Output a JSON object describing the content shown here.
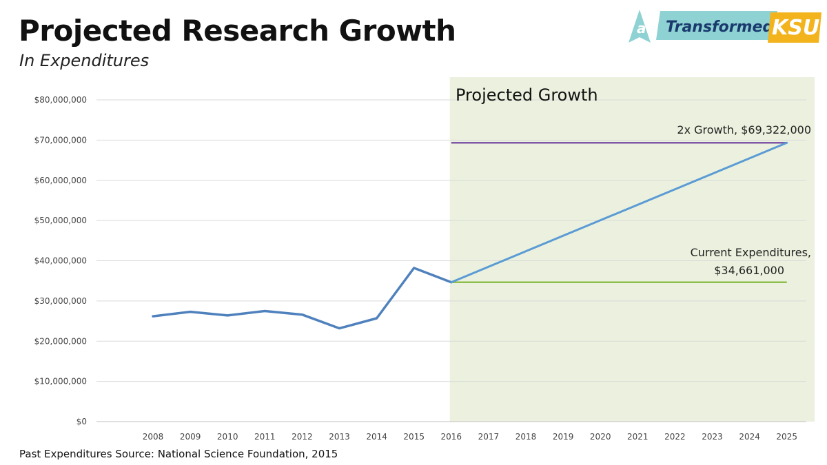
{
  "header": {
    "title": "Projected Research Growth",
    "subtitle": "In Expenditures"
  },
  "footer": {
    "source": "Past Expenditures Source: National Science Foundation, 2015"
  },
  "logo": {
    "word1": "Transformed",
    "word2": "KSU",
    "mark": "a",
    "colors": {
      "teal": "#8ed2d3",
      "gold": "#f2b31c",
      "navy": "#1a3a6e",
      "white": "#ffffff"
    }
  },
  "chart_data": {
    "type": "line",
    "x": [
      "2008",
      "2009",
      "2010",
      "2011",
      "2012",
      "2013",
      "2014",
      "2015",
      "2016",
      "2017",
      "2018",
      "2019",
      "2020",
      "2021",
      "2022",
      "2023",
      "2024",
      "2025"
    ],
    "y_ticks": [
      "$0",
      "$10,000,000",
      "$20,000,000",
      "$30,000,000",
      "$40,000,000",
      "$50,000,000",
      "$60,000,000",
      "$70,000,000",
      "$80,000,000"
    ],
    "ylim": [
      0,
      80000000
    ],
    "grid": true,
    "series": [
      {
        "x": [
          "2008",
          "2009",
          "2010",
          "2011",
          "2012",
          "2013",
          "2014",
          "2015",
          "2016"
        ],
        "values": [
          26200000,
          27300000,
          26400000,
          27500000,
          26600000,
          23200000,
          25700000,
          38200000,
          34661000
        ],
        "color": "#4f81bd"
      },
      {
        "x": [
          "2016",
          "2025"
        ],
        "values": [
          34661000,
          69322000
        ],
        "color": "#5b9bd5"
      },
      {
        "x": [
          "2016",
          "2025"
        ],
        "values": [
          69322000,
          69322000
        ],
        "color": "#7e57a6"
      },
      {
        "x": [
          "2016",
          "2025"
        ],
        "values": [
          34661000,
          34661000
        ],
        "color": "#8fbe4a"
      }
    ],
    "projection_region": {
      "from": "2016",
      "to": "2025",
      "label": "Projected Growth",
      "color": "#ebf1de"
    },
    "annotations": [
      {
        "text": "2x Growth,  $69,322,000"
      },
      {
        "line1": "Current Expenditures,",
        "line2": "$34,661,000"
      }
    ]
  }
}
